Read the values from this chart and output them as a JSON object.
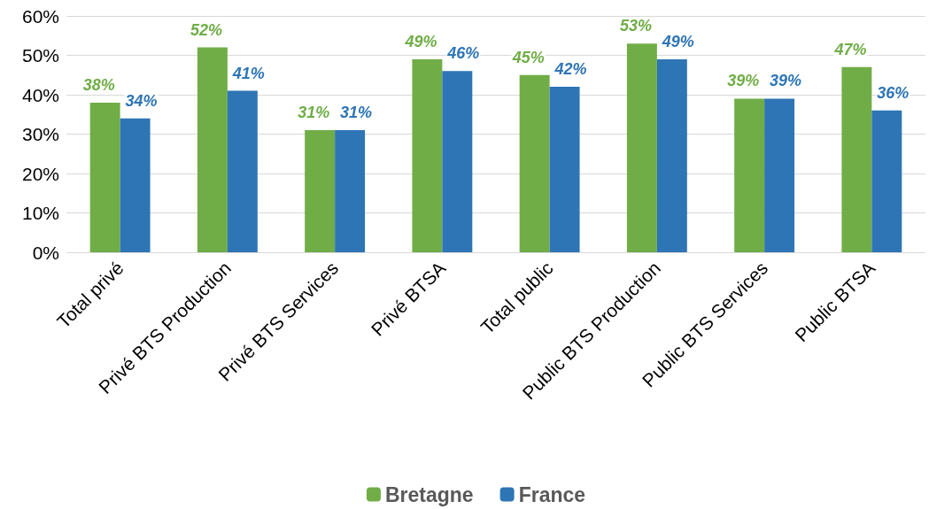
{
  "chart_data": {
    "type": "bar",
    "categories": [
      "Total privé",
      "Privé BTS Production",
      "Privé BTS Services",
      "Privé BTSA",
      "Total public",
      "Public BTS Production",
      "Public BTS Services",
      "Public BTSA"
    ],
    "series": [
      {
        "name": "Bretagne",
        "color": "#70ad47",
        "values": [
          38,
          52,
          31,
          49,
          45,
          53,
          39,
          47
        ],
        "value_labels": [
          "38%",
          "52%",
          "31%",
          "49%",
          "45%",
          "53%",
          "39%",
          "47%"
        ]
      },
      {
        "name": "France",
        "color": "#2e75b6",
        "values": [
          34,
          41,
          31,
          46,
          42,
          49,
          39,
          36
        ],
        "value_labels": [
          "34%",
          "41%",
          "31%",
          "46%",
          "42%",
          "49%",
          "39%",
          "36%"
        ]
      }
    ],
    "ylim": [
      0,
      60
    ],
    "yticks": [
      {
        "value": 0,
        "label": "0%"
      },
      {
        "value": 10,
        "label": "10%"
      },
      {
        "value": 20,
        "label": "20%"
      },
      {
        "value": 30,
        "label": "30%"
      },
      {
        "value": 40,
        "label": "40%"
      },
      {
        "value": 50,
        "label": "50%"
      },
      {
        "value": 60,
        "label": "60%"
      }
    ],
    "grid": "y",
    "legend": "bottom"
  }
}
